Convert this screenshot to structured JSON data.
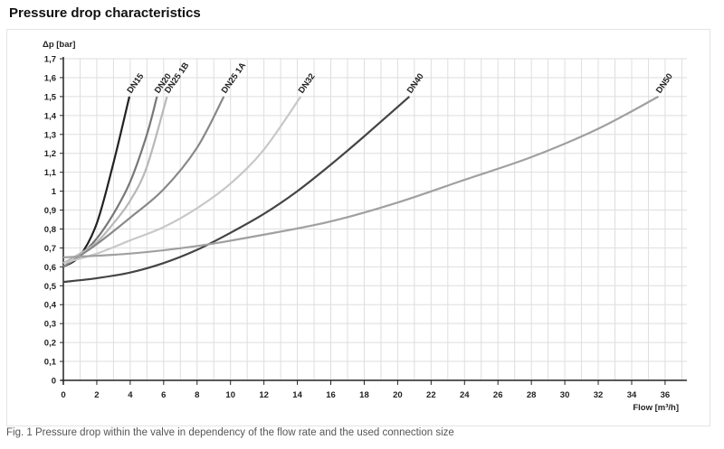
{
  "title": "Pressure drop characteristics",
  "caption": "Fig. 1 Pressure drop within the valve in dependency of the flow rate and the used connection size",
  "chart_data": {
    "type": "line",
    "title": "Pressure drop characteristics",
    "xlabel": "Flow [m³/h]",
    "ylabel": "Δp [bar]",
    "xlim": [
      0,
      37
    ],
    "ylim": [
      0,
      1.7
    ],
    "grid": true,
    "xticks": [
      "0",
      "2",
      "4",
      "6",
      "8",
      "10",
      "12",
      "14",
      "16",
      "18",
      "20",
      "22",
      "24",
      "26",
      "28",
      "30",
      "32",
      "34",
      "36"
    ],
    "yticks": [
      "0",
      "0,1",
      "0,2",
      "0,3",
      "0,4",
      "0,5",
      "0,6",
      "0,7",
      "0,8",
      "0,9",
      "1",
      "1,1",
      "1,2",
      "1,3",
      "1,4",
      "1,5",
      "1,6",
      "1,7"
    ],
    "series": [
      {
        "name": "DN15",
        "color": "#222222",
        "x": [
          0,
          1,
          2,
          3,
          3.95
        ],
        "y": [
          0.6,
          0.66,
          0.83,
          1.15,
          1.5
        ]
      },
      {
        "name": "DN20",
        "color": "#777777",
        "x": [
          0,
          1,
          2,
          3,
          4,
          5,
          5.6
        ],
        "y": [
          0.6,
          0.66,
          0.75,
          0.88,
          1.05,
          1.3,
          1.5
        ]
      },
      {
        "name": "DN25 1B",
        "color": "#b8b8b8",
        "x": [
          0,
          1,
          2,
          3,
          4,
          5,
          6.2
        ],
        "y": [
          0.62,
          0.67,
          0.73,
          0.83,
          0.95,
          1.13,
          1.5
        ]
      },
      {
        "name": "DN25 1A",
        "color": "#888888",
        "x": [
          0,
          2,
          4,
          6,
          8,
          9.6
        ],
        "y": [
          0.6,
          0.72,
          0.86,
          1.01,
          1.23,
          1.5
        ]
      },
      {
        "name": "DN32",
        "color": "#c8c8c8",
        "x": [
          0,
          2,
          4,
          6,
          8,
          10,
          12,
          14.2
        ],
        "y": [
          0.62,
          0.67,
          0.74,
          0.81,
          0.91,
          1.04,
          1.22,
          1.5
        ]
      },
      {
        "name": "DN40",
        "color": "#444444",
        "x": [
          0,
          2,
          4,
          6,
          8,
          10,
          12,
          14,
          16,
          18,
          20.7
        ],
        "y": [
          0.52,
          0.54,
          0.57,
          0.62,
          0.69,
          0.78,
          0.88,
          1.0,
          1.14,
          1.29,
          1.5
        ]
      },
      {
        "name": "DN50",
        "color": "#a0a0a0",
        "x": [
          0,
          4,
          8,
          12,
          16,
          20,
          24,
          28,
          32,
          35.6
        ],
        "y": [
          0.65,
          0.67,
          0.71,
          0.77,
          0.84,
          0.94,
          1.06,
          1.18,
          1.33,
          1.5
        ]
      }
    ]
  }
}
